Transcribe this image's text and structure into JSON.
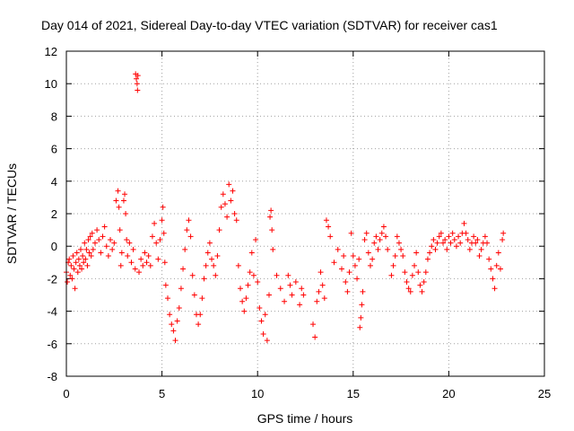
{
  "chart_data": {
    "type": "scatter",
    "title": "Day 014 of 2021, Sidereal Day-to-day VTEC variation (SDTVAR) for receiver cas1",
    "xlabel": "GPS time / hours",
    "ylabel": "SDTVAR / TECUs",
    "xlim": [
      0,
      25
    ],
    "ylim": [
      -8,
      12
    ],
    "xticks": [
      0,
      5,
      10,
      15,
      20,
      25
    ],
    "yticks": [
      -8,
      -6,
      -4,
      -2,
      0,
      2,
      4,
      6,
      8,
      10,
      12
    ],
    "grid": true,
    "marker": "+",
    "color": "#ff0000",
    "series": [
      {
        "name": "SDTVAR",
        "points": [
          [
            0.0,
            -1.6
          ],
          [
            0.05,
            -2.2
          ],
          [
            0.1,
            -1.0
          ],
          [
            0.15,
            -0.8
          ],
          [
            0.2,
            -1.8
          ],
          [
            0.25,
            -1.2
          ],
          [
            0.3,
            -2.0
          ],
          [
            0.35,
            -0.6
          ],
          [
            0.4,
            -1.4
          ],
          [
            0.45,
            -2.6
          ],
          [
            0.5,
            -1.0
          ],
          [
            0.55,
            -0.4
          ],
          [
            0.6,
            -1.6
          ],
          [
            0.65,
            -0.8
          ],
          [
            0.7,
            -1.2
          ],
          [
            0.75,
            -0.2
          ],
          [
            0.8,
            -1.4
          ],
          [
            0.85,
            -0.6
          ],
          [
            0.9,
            -1.0
          ],
          [
            0.95,
            0.2
          ],
          [
            1.0,
            -0.8
          ],
          [
            1.05,
            -0.2
          ],
          [
            1.1,
            -1.2
          ],
          [
            1.15,
            0.4
          ],
          [
            1.2,
            -0.4
          ],
          [
            1.25,
            0.6
          ],
          [
            1.3,
            -0.6
          ],
          [
            1.35,
            0.8
          ],
          [
            1.4,
            -0.2
          ],
          [
            1.5,
            0.2
          ],
          [
            1.6,
            1.0
          ],
          [
            1.7,
            0.4
          ],
          [
            1.8,
            -0.4
          ],
          [
            1.9,
            0.6
          ],
          [
            2.0,
            1.2
          ],
          [
            2.1,
            0.0
          ],
          [
            2.2,
            -0.6
          ],
          [
            2.3,
            0.4
          ],
          [
            2.4,
            -0.2
          ],
          [
            2.5,
            0.2
          ],
          [
            2.6,
            2.8
          ],
          [
            2.7,
            3.4
          ],
          [
            2.75,
            2.4
          ],
          [
            2.8,
            1.0
          ],
          [
            2.85,
            -1.2
          ],
          [
            2.9,
            -0.4
          ],
          [
            3.0,
            2.8
          ],
          [
            3.05,
            3.2
          ],
          [
            3.1,
            2.0
          ],
          [
            3.15,
            0.4
          ],
          [
            3.2,
            -0.6
          ],
          [
            3.3,
            0.2
          ],
          [
            3.4,
            -1.0
          ],
          [
            3.5,
            -0.2
          ],
          [
            3.6,
            -1.4
          ],
          [
            3.62,
            10.6
          ],
          [
            3.66,
            10.3
          ],
          [
            3.7,
            10.0
          ],
          [
            3.72,
            9.6
          ],
          [
            3.74,
            10.5
          ],
          [
            3.8,
            -1.6
          ],
          [
            3.9,
            -0.8
          ],
          [
            4.0,
            -1.2
          ],
          [
            4.1,
            -0.4
          ],
          [
            4.2,
            -1.0
          ],
          [
            4.3,
            -0.6
          ],
          [
            4.4,
            -1.2
          ],
          [
            4.5,
            0.6
          ],
          [
            4.6,
            1.4
          ],
          [
            4.7,
            0.2
          ],
          [
            4.8,
            -0.8
          ],
          [
            4.9,
            0.4
          ],
          [
            5.0,
            1.6
          ],
          [
            5.05,
            2.4
          ],
          [
            5.1,
            0.8
          ],
          [
            5.15,
            -1.0
          ],
          [
            5.2,
            -2.4
          ],
          [
            5.3,
            -3.2
          ],
          [
            5.4,
            -4.2
          ],
          [
            5.5,
            -4.8
          ],
          [
            5.6,
            -5.2
          ],
          [
            5.7,
            -5.8
          ],
          [
            5.8,
            -4.6
          ],
          [
            5.9,
            -3.8
          ],
          [
            6.0,
            -2.6
          ],
          [
            6.1,
            -1.4
          ],
          [
            6.2,
            -0.2
          ],
          [
            6.3,
            1.0
          ],
          [
            6.4,
            1.6
          ],
          [
            6.5,
            0.6
          ],
          [
            6.6,
            -1.8
          ],
          [
            6.7,
            -3.0
          ],
          [
            6.8,
            -4.2
          ],
          [
            6.9,
            -4.8
          ],
          [
            7.0,
            -4.2
          ],
          [
            7.1,
            -3.2
          ],
          [
            7.2,
            -2.0
          ],
          [
            7.3,
            -1.2
          ],
          [
            7.4,
            -0.4
          ],
          [
            7.5,
            0.2
          ],
          [
            7.6,
            -0.8
          ],
          [
            7.7,
            -1.2
          ],
          [
            7.8,
            -1.8
          ],
          [
            7.9,
            -0.6
          ],
          [
            8.0,
            1.0
          ],
          [
            8.1,
            2.4
          ],
          [
            8.2,
            3.2
          ],
          [
            8.3,
            2.6
          ],
          [
            8.4,
            1.8
          ],
          [
            8.5,
            3.8
          ],
          [
            8.6,
            2.8
          ],
          [
            8.7,
            3.4
          ],
          [
            8.8,
            2.0
          ],
          [
            8.9,
            1.6
          ],
          [
            9.0,
            -1.2
          ],
          [
            9.1,
            -2.6
          ],
          [
            9.2,
            -3.4
          ],
          [
            9.3,
            -4.0
          ],
          [
            9.4,
            -3.2
          ],
          [
            9.5,
            -2.4
          ],
          [
            9.6,
            -1.6
          ],
          [
            9.7,
            -0.4
          ],
          [
            9.8,
            -1.8
          ],
          [
            9.9,
            0.4
          ],
          [
            10.0,
            -2.2
          ],
          [
            10.1,
            -3.8
          ],
          [
            10.2,
            -4.6
          ],
          [
            10.3,
            -5.4
          ],
          [
            10.4,
            -4.2
          ],
          [
            10.5,
            -5.8
          ],
          [
            10.6,
            -3.0
          ],
          [
            10.65,
            1.8
          ],
          [
            10.7,
            2.2
          ],
          [
            10.75,
            1.0
          ],
          [
            10.8,
            -0.2
          ],
          [
            11.0,
            -1.8
          ],
          [
            11.2,
            -2.6
          ],
          [
            11.4,
            -3.4
          ],
          [
            11.6,
            -1.8
          ],
          [
            11.7,
            -2.4
          ],
          [
            11.8,
            -3.0
          ],
          [
            12.0,
            -2.2
          ],
          [
            12.2,
            -3.6
          ],
          [
            12.3,
            -2.6
          ],
          [
            12.4,
            -3.0
          ],
          [
            12.9,
            -4.8
          ],
          [
            13.0,
            -5.6
          ],
          [
            13.1,
            -3.4
          ],
          [
            13.2,
            -2.8
          ],
          [
            13.3,
            -1.6
          ],
          [
            13.4,
            -2.4
          ],
          [
            13.5,
            -3.2
          ],
          [
            13.6,
            1.6
          ],
          [
            13.7,
            1.2
          ],
          [
            13.8,
            0.6
          ],
          [
            14.0,
            -1.0
          ],
          [
            14.2,
            -0.2
          ],
          [
            14.4,
            -1.4
          ],
          [
            14.5,
            -0.6
          ],
          [
            14.6,
            -2.2
          ],
          [
            14.7,
            -2.8
          ],
          [
            14.8,
            -1.6
          ],
          [
            14.9,
            0.8
          ],
          [
            15.0,
            -0.6
          ],
          [
            15.1,
            -1.2
          ],
          [
            15.2,
            -2.0
          ],
          [
            15.3,
            -0.8
          ],
          [
            15.35,
            -5.0
          ],
          [
            15.4,
            -4.4
          ],
          [
            15.45,
            -3.6
          ],
          [
            15.5,
            -2.8
          ],
          [
            15.6,
            0.4
          ],
          [
            15.7,
            0.8
          ],
          [
            15.8,
            -0.4
          ],
          [
            15.9,
            -1.2
          ],
          [
            16.0,
            -0.8
          ],
          [
            16.1,
            0.2
          ],
          [
            16.2,
            0.6
          ],
          [
            16.3,
            -0.2
          ],
          [
            16.4,
            0.4
          ],
          [
            16.5,
            0.8
          ],
          [
            16.6,
            1.2
          ],
          [
            16.7,
            0.6
          ],
          [
            16.8,
            -0.2
          ],
          [
            17.0,
            -1.8
          ],
          [
            17.1,
            -1.2
          ],
          [
            17.2,
            -0.6
          ],
          [
            17.3,
            0.6
          ],
          [
            17.4,
            0.2
          ],
          [
            17.5,
            -0.2
          ],
          [
            17.6,
            -0.6
          ],
          [
            17.7,
            -1.6
          ],
          [
            17.8,
            -2.2
          ],
          [
            17.9,
            -2.6
          ],
          [
            18.0,
            -2.8
          ],
          [
            18.1,
            -1.8
          ],
          [
            18.2,
            -1.2
          ],
          [
            18.3,
            -0.4
          ],
          [
            18.4,
            -1.6
          ],
          [
            18.5,
            -2.4
          ],
          [
            18.6,
            -2.8
          ],
          [
            18.7,
            -2.2
          ],
          [
            18.8,
            -1.6
          ],
          [
            18.9,
            -0.8
          ],
          [
            19.0,
            -0.4
          ],
          [
            19.1,
            0.0
          ],
          [
            19.2,
            0.4
          ],
          [
            19.3,
            -0.2
          ],
          [
            19.4,
            0.2
          ],
          [
            19.5,
            0.6
          ],
          [
            19.6,
            0.8
          ],
          [
            19.7,
            0.2
          ],
          [
            19.8,
            0.4
          ],
          [
            19.9,
            -0.2
          ],
          [
            20.0,
            0.6
          ],
          [
            20.1,
            0.2
          ],
          [
            20.2,
            0.8
          ],
          [
            20.3,
            0.4
          ],
          [
            20.4,
            0.0
          ],
          [
            20.5,
            0.6
          ],
          [
            20.6,
            0.2
          ],
          [
            20.7,
            0.8
          ],
          [
            20.8,
            1.4
          ],
          [
            20.9,
            0.8
          ],
          [
            21.0,
            0.4
          ],
          [
            21.1,
            -0.2
          ],
          [
            21.2,
            0.2
          ],
          [
            21.3,
            0.6
          ],
          [
            21.4,
            0.2
          ],
          [
            21.5,
            0.4
          ],
          [
            21.6,
            -0.6
          ],
          [
            21.7,
            -0.2
          ],
          [
            21.8,
            0.2
          ],
          [
            21.9,
            0.6
          ],
          [
            22.0,
            0.2
          ],
          [
            22.1,
            -0.8
          ],
          [
            22.2,
            -1.4
          ],
          [
            22.3,
            -2.0
          ],
          [
            22.4,
            -2.6
          ],
          [
            22.5,
            -1.2
          ],
          [
            22.6,
            -0.4
          ],
          [
            22.7,
            -1.4
          ],
          [
            22.8,
            0.4
          ],
          [
            22.85,
            0.8
          ]
        ]
      }
    ]
  }
}
